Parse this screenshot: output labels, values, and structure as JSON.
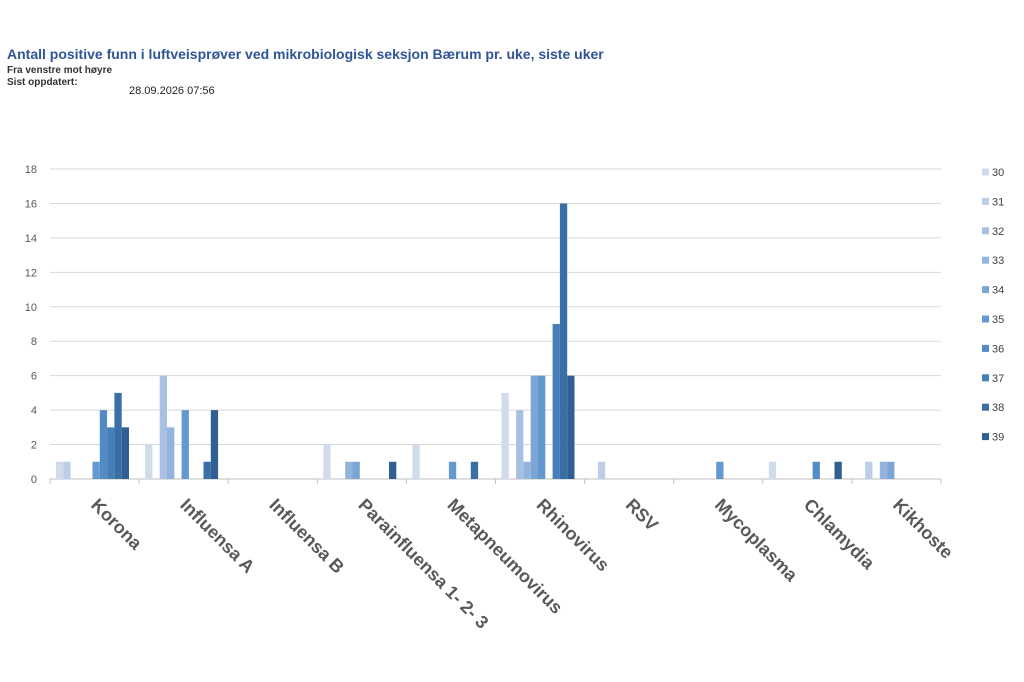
{
  "header": {
    "title": "Antall positive funn i luftveisprøver ved mikrobiologisk seksjon Bærum pr. uke, siste uker",
    "subtitle": "Fra venstre mot høyre",
    "updated_label": "Sist oppdatert:",
    "updated_value": "28.09.2026 07:56"
  },
  "chart_data": {
    "type": "bar",
    "categories": [
      "Korona",
      "Influensa A",
      "Influensa B",
      "Parainfluensa 1- 2- 3",
      "Metapneumovirus",
      "Rhinovirus",
      "RSV",
      "Mycoplasma",
      "Chlamydia",
      "Kikhoste"
    ],
    "ylim": [
      0,
      18
    ],
    "yticks": [
      "0",
      "2",
      "4",
      "6",
      "8",
      "10",
      "12",
      "14",
      "16",
      "18"
    ],
    "grid": true,
    "legend_position": "right",
    "series": [
      {
        "name": "30",
        "color": "#d0dcec",
        "values": [
          1,
          2,
          0,
          2,
          2,
          5,
          0,
          0,
          1,
          0
        ]
      },
      {
        "name": "31",
        "color": "#bccfe7",
        "values": [
          1,
          0,
          0,
          0,
          0,
          0,
          1,
          0,
          0,
          1
        ]
      },
      {
        "name": "32",
        "color": "#a8c1e3",
        "values": [
          0,
          6,
          0,
          0,
          0,
          4,
          0,
          0,
          0,
          0
        ]
      },
      {
        "name": "33",
        "color": "#93b4dc",
        "values": [
          0,
          3,
          0,
          1,
          0,
          1,
          0,
          0,
          0,
          1
        ]
      },
      {
        "name": "34",
        "color": "#7aa5d6",
        "values": [
          0,
          0,
          0,
          1,
          0,
          6,
          0,
          0,
          0,
          1
        ]
      },
      {
        "name": "35",
        "color": "#6398d0",
        "values": [
          1,
          4,
          0,
          0,
          1,
          6,
          0,
          1,
          0,
          0
        ]
      },
      {
        "name": "36",
        "color": "#538bc4",
        "values": [
          4,
          0,
          0,
          0,
          0,
          0,
          0,
          0,
          1,
          0
        ]
      },
      {
        "name": "37",
        "color": "#467fb8",
        "values": [
          3,
          0,
          0,
          0,
          0,
          9,
          0,
          0,
          0,
          0
        ]
      },
      {
        "name": "38",
        "color": "#3a6fa6",
        "values": [
          5,
          1,
          0,
          0,
          1,
          16,
          0,
          0,
          0,
          0
        ]
      },
      {
        "name": "39",
        "color": "#2f5f93",
        "values": [
          3,
          4,
          0,
          1,
          0,
          6,
          0,
          0,
          1,
          0
        ]
      }
    ]
  }
}
